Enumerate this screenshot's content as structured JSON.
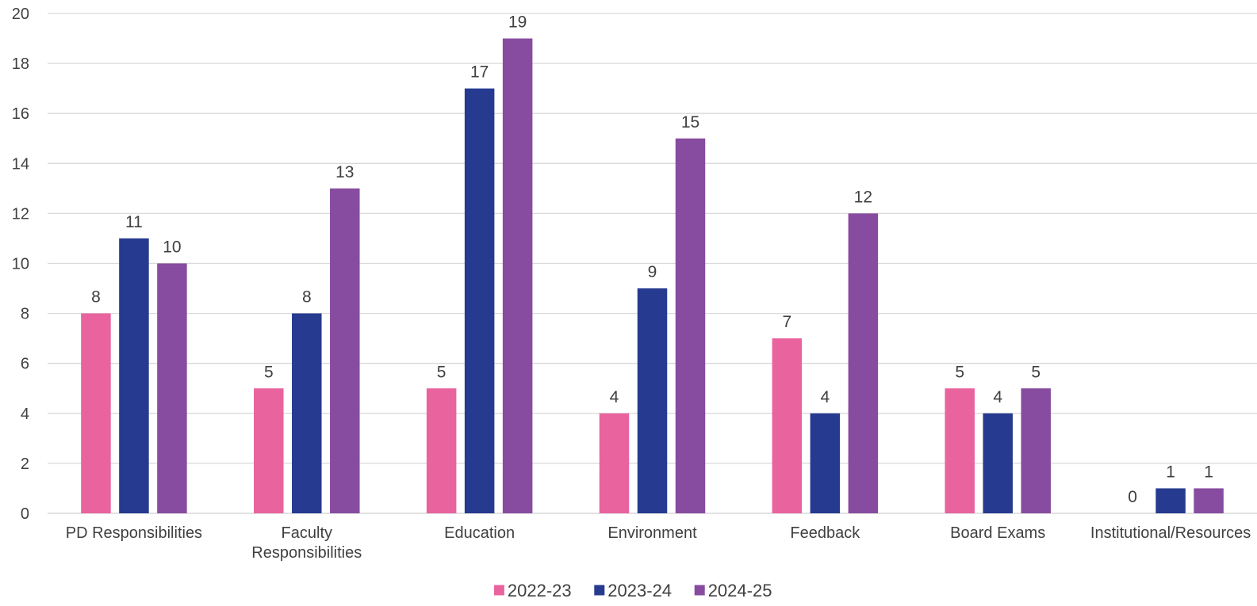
{
  "chart_data": {
    "type": "bar",
    "categories": [
      [
        "PD Responsibilities"
      ],
      [
        "Faculty",
        "Responsibilities"
      ],
      [
        "Education"
      ],
      [
        "Environment"
      ],
      [
        "Feedback"
      ],
      [
        "Board Exams"
      ],
      [
        "Institutional/Resources"
      ]
    ],
    "series": [
      {
        "name": "2022-23",
        "color": "#e9639f",
        "values": [
          8,
          5,
          5,
          4,
          7,
          5,
          0
        ]
      },
      {
        "name": "2023-24",
        "color": "#263a8f",
        "values": [
          11,
          8,
          17,
          9,
          4,
          4,
          1
        ]
      },
      {
        "name": "2024-25",
        "color": "#874c9f",
        "values": [
          10,
          13,
          19,
          15,
          12,
          5,
          1
        ]
      }
    ],
    "ylim": [
      0,
      20
    ],
    "yticks": [
      0,
      2,
      4,
      6,
      8,
      10,
      12,
      14,
      16,
      18,
      20
    ],
    "grid": true,
    "legend_position": "bottom",
    "title": "",
    "xlabel": "",
    "ylabel": ""
  }
}
